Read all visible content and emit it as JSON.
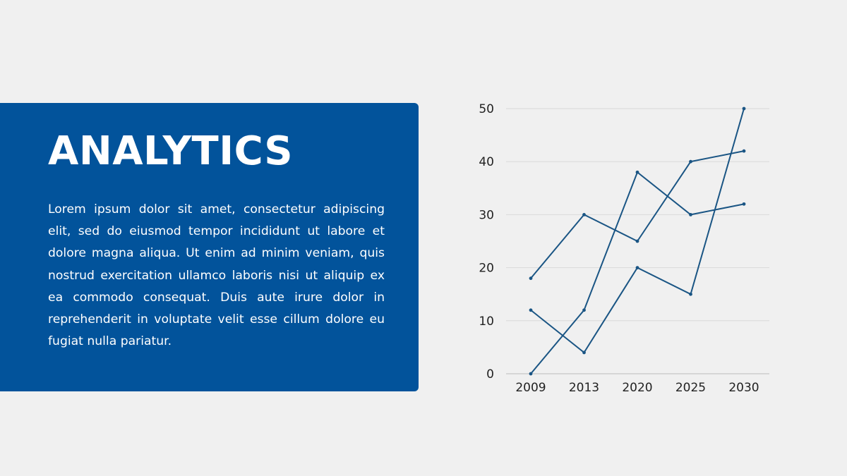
{
  "slide": {
    "title": "ANALYTICS",
    "body": "Lorem ipsum dolor sit amet, consectetur adipiscing elit, sed do eiusmod tempor incididunt ut labore et dolore magna aliqua. Ut enim ad minim veniam, quis nostrud exercitation ullamco laboris nisi ut aliquip ex ea commodo consequat. Duis aute irure dolor in reprehenderit in voluptate velit esse cillum dolore eu fugiat nulla pariatur."
  },
  "colors": {
    "panel": "#02539b",
    "background": "#f0f0f0",
    "series": "#1a5584",
    "grid": "#d9d9d9"
  },
  "chart_data": {
    "type": "line",
    "title": "",
    "xlabel": "",
    "ylabel": "",
    "categories": [
      "2009",
      "2013",
      "2020",
      "2025",
      "2030"
    ],
    "ylim": [
      0,
      50
    ],
    "yticks": [
      0,
      10,
      20,
      30,
      40,
      50
    ],
    "grid": true,
    "legend": "none",
    "series": [
      {
        "values": [
          18,
          30,
          25,
          40,
          42
        ]
      },
      {
        "values": [
          12,
          4,
          20,
          15,
          50
        ]
      },
      {
        "values": [
          0,
          12,
          38,
          30,
          32
        ]
      }
    ]
  }
}
